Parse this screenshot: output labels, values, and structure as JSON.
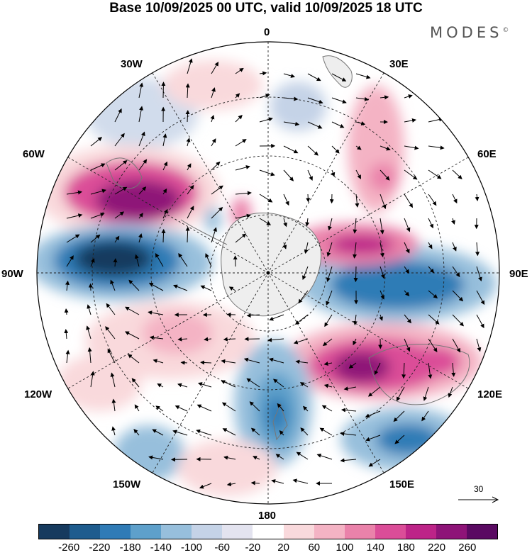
{
  "title": "Base 10/09/2025 00 UTC, valid 10/09/2025 18 UTC",
  "brand": "MODES",
  "brand_mark": "©",
  "longitude_labels": [
    "0",
    "30E",
    "60E",
    "90E",
    "120E",
    "150E",
    "180",
    "150W",
    "120W",
    "90W",
    "60W",
    "30W"
  ],
  "vector_reference": {
    "value": "30",
    "icon": "arrow-right-icon"
  },
  "colorbar": {
    "colors": [
      "#163a5e",
      "#1e5c8e",
      "#2f7bb6",
      "#5ea0cb",
      "#97bfdc",
      "#c5d3e7",
      "#e3e3ef",
      "#ffffff",
      "#f9d9dc",
      "#f4b3c4",
      "#ea82aa",
      "#db4d98",
      "#bd2488",
      "#8e1478",
      "#5a0a62"
    ],
    "tick_labels": [
      "-260",
      "-220",
      "-180",
      "-140",
      "-100",
      "-60",
      "-20",
      "20",
      "60",
      "100",
      "140",
      "180",
      "220",
      "260"
    ]
  },
  "colors": {
    "ocean": "#ffffff",
    "ice": "#eeeeee",
    "coast": "#777777",
    "grid": "#222222"
  }
}
